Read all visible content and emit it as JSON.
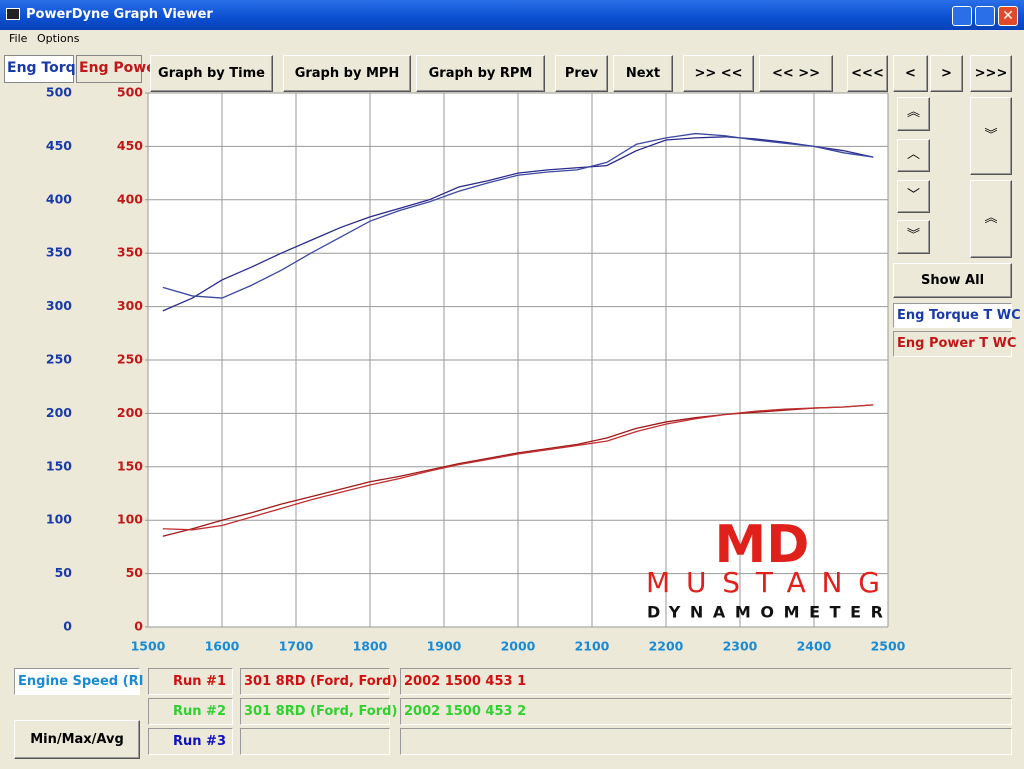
{
  "window": {
    "title": "PowerDyne Graph Viewer",
    "menu": [
      "File",
      "Options"
    ]
  },
  "tabs": [
    "Eng Torq",
    "Eng Powe"
  ],
  "toolbar": [
    "Graph by Time",
    "Graph by MPH",
    "Graph by RPM",
    "Prev",
    "Next",
    ">> <<",
    "<< >>",
    "<<<",
    "<",
    ">",
    ">>>"
  ],
  "side": {
    "show_all": "Show All",
    "channels": [
      "Eng Torque T WC",
      "Eng Power T WC"
    ]
  },
  "chart_data": {
    "type": "line",
    "x": [
      1520,
      1560,
      1600,
      1640,
      1680,
      1720,
      1760,
      1800,
      1840,
      1880,
      1920,
      1960,
      2000,
      2040,
      2080,
      2120,
      2160,
      2200,
      2240,
      2280,
      2320,
      2360,
      2400,
      2440,
      2480
    ],
    "series": [
      {
        "color": "#2a2a8c",
        "axis": "y",
        "values": [
          296,
          308,
          325,
          337,
          350,
          362,
          374,
          384,
          392,
          400,
          412,
          418,
          425,
          428,
          430,
          432,
          446,
          456,
          458,
          459,
          457,
          454,
          450,
          446,
          440
        ]
      },
      {
        "color": "#3a48a0",
        "axis": "y",
        "values": [
          318,
          310,
          308,
          320,
          334,
          350,
          365,
          380,
          390,
          398,
          408,
          416,
          423,
          426,
          428,
          435,
          452,
          458,
          462,
          460,
          456,
          453,
          450,
          444,
          440
        ]
      },
      {
        "color": "#a01818",
        "axis": "y2",
        "values": [
          85,
          92,
          100,
          107,
          115,
          122,
          129,
          136,
          141,
          147,
          153,
          158,
          163,
          167,
          171,
          177,
          186,
          192,
          196,
          199,
          201,
          203,
          205,
          206,
          208
        ]
      },
      {
        "color": "#c03030",
        "axis": "y2",
        "values": [
          92,
          91,
          95,
          103,
          111,
          119,
          126,
          133,
          139,
          146,
          152,
          157,
          162,
          166,
          170,
          174,
          183,
          190,
          195,
          199,
          202,
          204,
          205,
          206,
          208
        ]
      }
    ],
    "xlim": [
      1500,
      2500
    ],
    "xticks": [
      1500,
      1600,
      1700,
      1800,
      1900,
      2000,
      2100,
      2200,
      2300,
      2400,
      2500
    ],
    "ylim": [
      0,
      500
    ],
    "yticks": [
      0,
      50,
      100,
      150,
      200,
      250,
      300,
      350,
      400,
      450,
      500
    ],
    "y2lim": [
      0,
      500
    ],
    "y2ticks": [
      0,
      50,
      100,
      150,
      200,
      250,
      300,
      350,
      400,
      450,
      500
    ],
    "grid": true
  },
  "logo": {
    "mark": "MD",
    "name": "MUSTANG",
    "sub": "DYNAMOMETER"
  },
  "footer": {
    "x_channel": "Engine Speed (RI",
    "button": "Min/Max/Avg",
    "runs": [
      {
        "label": "Run #1",
        "color": "#d01010",
        "engine": "301 8RD (Ford, Ford)",
        "info": "2002 1500 453 1"
      },
      {
        "label": "Run #2",
        "color": "#30d030",
        "engine": "301 8RD (Ford, Ford)",
        "info": "2002 1500 453 2"
      },
      {
        "label": "Run #3",
        "color": "#1010c0"
      }
    ]
  }
}
